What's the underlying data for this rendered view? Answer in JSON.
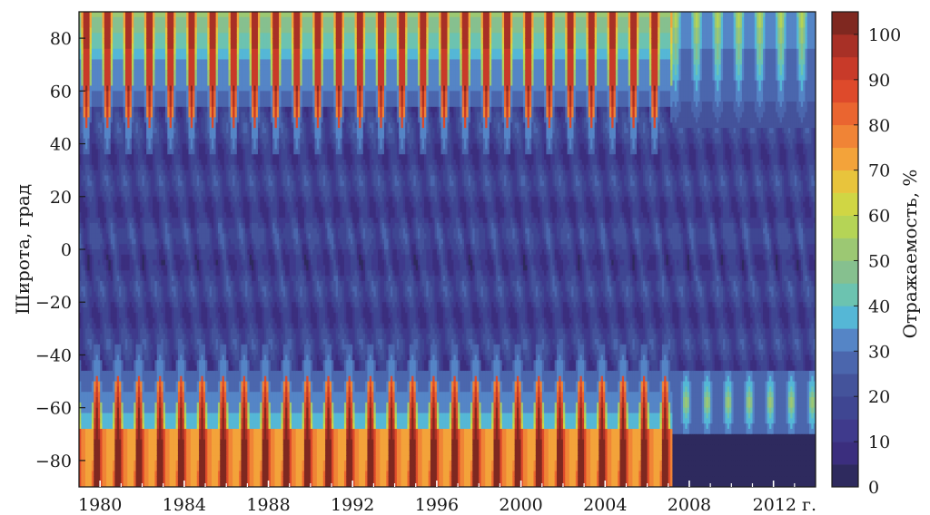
{
  "chart_data": {
    "type": "heatmap",
    "title": "",
    "xlabel": "",
    "ylabel": "Широта, град",
    "colorbar_label": "Отражаемость, %",
    "xlim": [
      1979,
      2014
    ],
    "ylim": [
      -90,
      90
    ],
    "x_ticks": [
      1980,
      1984,
      1988,
      1992,
      1996,
      2000,
      2004,
      2008
    ],
    "x_tick_labels": [
      "1980",
      "1984",
      "1988",
      "1992",
      "1996",
      "2000",
      "2004",
      "2008"
    ],
    "x_last_tick": 2012,
    "x_last_tick_label": "2012 г.",
    "y_ticks": [
      80,
      60,
      40,
      20,
      0,
      -20,
      -40,
      -60,
      -80
    ],
    "y_tick_labels": [
      "80",
      "60",
      "40",
      "20",
      "0",
      "−20",
      "−40",
      "−60",
      "−80"
    ],
    "colorbar_range": [
      0,
      105
    ],
    "colorbar_ticks": [
      0,
      10,
      20,
      30,
      40,
      50,
      60,
      70,
      80,
      90,
      100
    ],
    "colorbar_tick_labels": [
      "0",
      "10",
      "20",
      "30",
      "40",
      "50",
      "60",
      "70",
      "80",
      "90",
      "100"
    ],
    "colorbar_levels": [
      {
        "from": 0,
        "to": 5,
        "color": "#2e2a5e"
      },
      {
        "from": 5,
        "to": 10,
        "color": "#3b2e7e"
      },
      {
        "from": 10,
        "to": 15,
        "color": "#3f3a8c"
      },
      {
        "from": 15,
        "to": 20,
        "color": "#3f4692"
      },
      {
        "from": 20,
        "to": 25,
        "color": "#44539b"
      },
      {
        "from": 25,
        "to": 30,
        "color": "#4b66ad"
      },
      {
        "from": 30,
        "to": 35,
        "color": "#5585c6"
      },
      {
        "from": 35,
        "to": 40,
        "color": "#55b7d6"
      },
      {
        "from": 40,
        "to": 45,
        "color": "#6cc3b0"
      },
      {
        "from": 45,
        "to": 50,
        "color": "#86c08f"
      },
      {
        "from": 50,
        "to": 55,
        "color": "#9cc873"
      },
      {
        "from": 55,
        "to": 60,
        "color": "#b5d456"
      },
      {
        "from": 60,
        "to": 65,
        "color": "#d0d644"
      },
      {
        "from": 65,
        "to": 70,
        "color": "#e8c43c"
      },
      {
        "from": 70,
        "to": 75,
        "color": "#f3a33a"
      },
      {
        "from": 75,
        "to": 80,
        "color": "#f08436"
      },
      {
        "from": 80,
        "to": 85,
        "color": "#ea6530"
      },
      {
        "from": 85,
        "to": 90,
        "color": "#de4a2b"
      },
      {
        "from": 90,
        "to": 95,
        "color": "#c83a29"
      },
      {
        "from": 95,
        "to": 100,
        "color": "#a83026"
      },
      {
        "from": 100,
        "to": 105,
        "color": "#7f2820"
      }
    ],
    "seasonal_cycle_years": 1,
    "regime_change_year": 2007.2,
    "field_summary": [
      {
        "region": "northern polar band (60..90)",
        "period": "1979-2007",
        "reflectance": "seasonal 40-100"
      },
      {
        "region": "northern polar band (60..90)",
        "period": "2007-2014",
        "reflectance": "seasonal 30-55"
      },
      {
        "region": "southern polar band (-90..-60)",
        "period": "1979-2007",
        "reflectance": "seasonal 30-100"
      },
      {
        "region": "southern polar band (-90..-60)",
        "period": "2007-2014",
        "reflectance": "0-55"
      },
      {
        "region": "mid and low latitudes (-40..40)",
        "period": "1979-2014",
        "reflectance": "10-30"
      }
    ],
    "grid": false,
    "legend": "colorbar-right"
  }
}
